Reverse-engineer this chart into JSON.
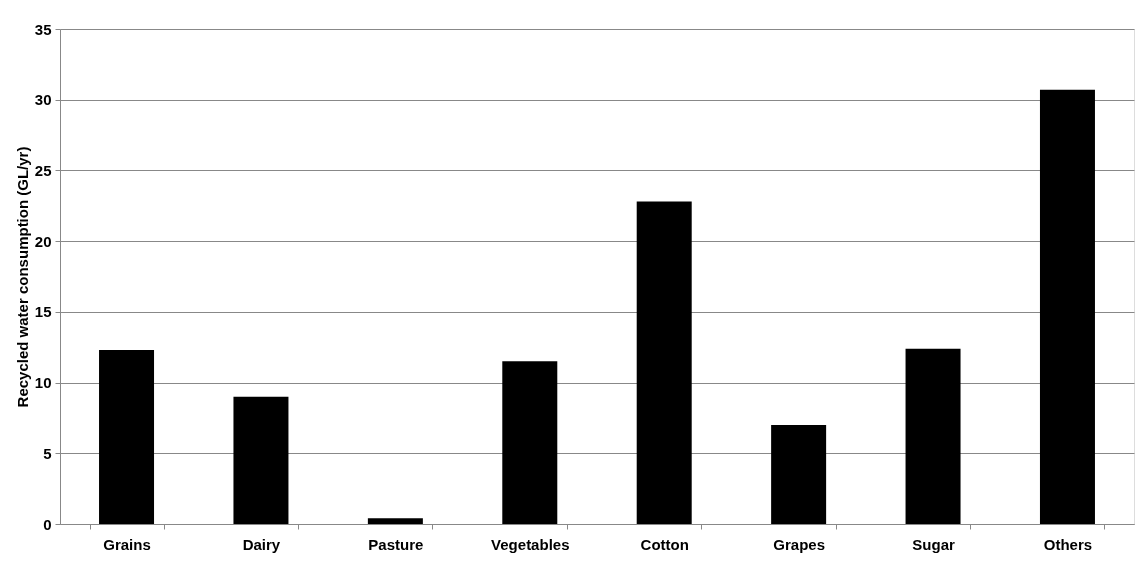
{
  "chart_data": {
    "type": "bar",
    "ylabel": "Recycled water consumption (GL/yr)",
    "categories": [
      "Grains",
      "Dairy",
      "Pasture",
      "Vegetables",
      "Cotton",
      "Grapes",
      "Sugar",
      "Others"
    ],
    "series": [
      {
        "color": "#000000",
        "values": [
          12.3,
          9.0,
          0.4,
          11.5,
          22.8,
          7.0,
          12.4,
          30.7
        ]
      }
    ],
    "ylim": [
      0,
      35
    ],
    "yticks": [
      0,
      5,
      10,
      15,
      20,
      25,
      30,
      35
    ],
    "grid": "y",
    "legend": false
  }
}
